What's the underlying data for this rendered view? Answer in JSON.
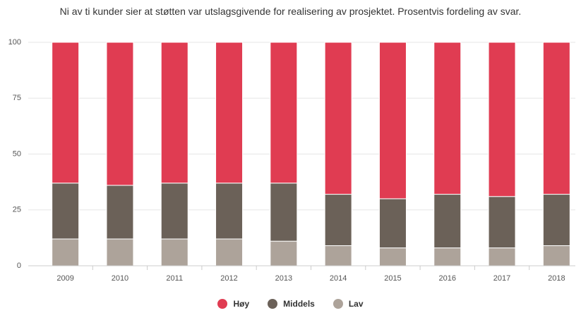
{
  "chart_data": {
    "type": "stacked_bar",
    "title": "Ni av ti kunder sier at støtten var utslagsgivende for realisering av prosjektet. Prosentvis fordeling av svar.",
    "categories": [
      "2009",
      "2010",
      "2011",
      "2012",
      "2013",
      "2014",
      "2015",
      "2016",
      "2017",
      "2018"
    ],
    "series": [
      {
        "name": "Lav",
        "color": "#ada39a",
        "values": [
          12,
          12,
          12,
          12,
          11,
          9,
          8,
          8,
          8,
          9
        ]
      },
      {
        "name": "Middels",
        "color": "#6b6158",
        "values": [
          25,
          24,
          25,
          25,
          26,
          23,
          22,
          24,
          23,
          23
        ]
      },
      {
        "name": "Høy",
        "color": "#e03c52",
        "values": [
          63,
          64,
          63,
          63,
          63,
          68,
          70,
          68,
          69,
          68
        ]
      }
    ],
    "legend_order": [
      "Høy",
      "Middels",
      "Lav"
    ],
    "ylim": [
      0,
      100
    ],
    "yticks": [
      0,
      25,
      50,
      75,
      100
    ],
    "grid": true
  }
}
